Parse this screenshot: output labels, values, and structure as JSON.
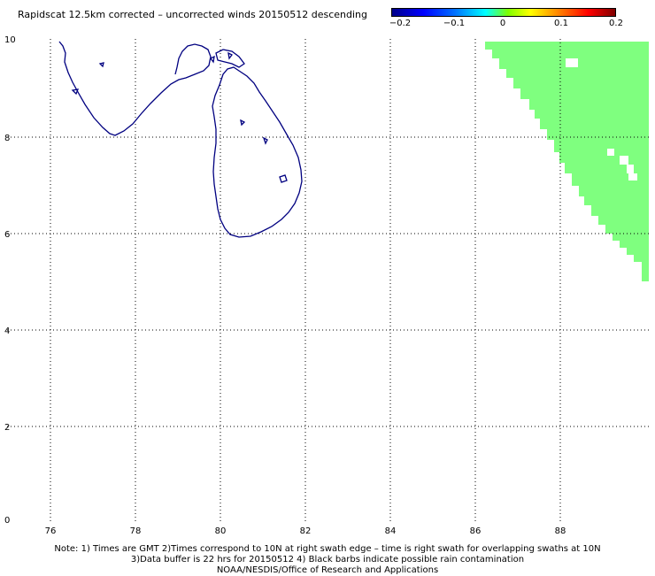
{
  "title": "Rapidscat 12.5km corrected – uncorrected winds 20150512 descending",
  "colorbar": {
    "labels": [
      "−0.2",
      "−0.1",
      "0",
      "0.1",
      "0.2"
    ],
    "colors": [
      "#00008a",
      "#0000ff",
      "#00ffff",
      "#ffff00",
      "#ff0000",
      "#800000"
    ]
  },
  "map": {
    "xlim": [
      75,
      90
    ],
    "ylim": [
      0,
      10
    ],
    "x_ticks": [
      "76",
      "78",
      "80",
      "82",
      "84",
      "86",
      "88"
    ],
    "y_ticks": [
      "0",
      "2",
      "4",
      "6",
      "8",
      "10"
    ],
    "grid": true,
    "gridline_style": "dotted",
    "coastline_color": "#000080",
    "swath_color": "#7fff7f",
    "land_features": [
      "India southern tip",
      "Sri Lanka"
    ]
  },
  "footer": {
    "line1": "Note: 1) Times are GMT 2)Times correspond to 10N at right swath edge – time is right swath for overlapping swaths at 10N",
    "line2": "3)Data buffer is 22 hrs for 20150512 4) Black barbs indicate possible rain contamination",
    "line3": "NOAA/NESDIS/Office of Research and Applications"
  }
}
